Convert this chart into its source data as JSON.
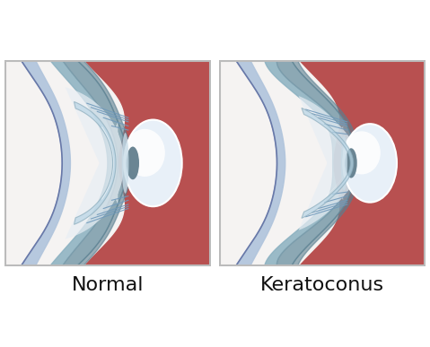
{
  "title_left": "Normal",
  "title_right": "Keratoconus",
  "bg_color": "#ffffff",
  "label_fontsize": 16,
  "label_color": "#111111",
  "sclera_white": "#f5f3f2",
  "sclera_outer_blue": "#a0b8d0",
  "sclera_outer_dark": "#6878a8",
  "red_choroid": "#b85050",
  "red_choroid_dark": "#8a3838",
  "iris_gray_blue": "#7a9baa",
  "iris_inner": "#5a7f90",
  "cornea_blue": "#8ab0c0",
  "lens_white": "#e8f0f8",
  "lens_highlight": "#ffffff",
  "lens_dark_center": "#5a7888",
  "zonule_blue": "#7099bb",
  "border_color": "#bbbbbb"
}
